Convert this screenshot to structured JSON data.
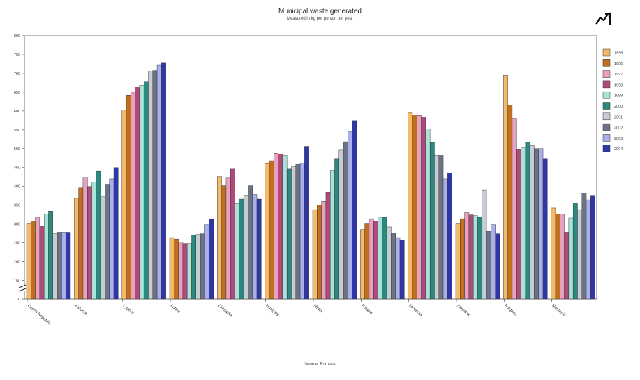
{
  "chart_data": {
    "type": "bar",
    "title": "Municipal waste generated",
    "subtitle": "Measured in kg per person per year",
    "source": "Source: Eurostat",
    "xlabel": "",
    "ylabel": "",
    "ylim": [
      0,
      800
    ],
    "axis_break": true,
    "yticks": [
      0,
      150,
      200,
      250,
      300,
      350,
      400,
      450,
      500,
      550,
      600,
      650,
      700,
      750,
      800
    ],
    "legend_position": "right",
    "categories": [
      "Czech Republic",
      "Estonia",
      "Cyprus",
      "Latvia",
      "Lithuania",
      "Hungary",
      "Malta",
      "Poland",
      "Slovenia",
      "Slovakia",
      "Bulgaria",
      "Romania"
    ],
    "series": [
      {
        "name": "1995",
        "color": "#f5b96b",
        "values": [
          302,
          368,
          602,
          264,
          426,
          460,
          338,
          285,
          596,
          302,
          694,
          342
        ]
      },
      {
        "name": "1996",
        "color": "#c0701c",
        "values": [
          308,
          396,
          642,
          260,
          402,
          468,
          350,
          302,
          590,
          314,
          616,
          326
        ]
      },
      {
        "name": "1997",
        "color": "#e8a1c0",
        "values": [
          318,
          424,
          650,
          252,
          422,
          488,
          360,
          314,
          588,
          330,
          580,
          326
        ]
      },
      {
        "name": "1998",
        "color": "#b04a78",
        "values": [
          294,
          400,
          664,
          248,
          446,
          486,
          384,
          308,
          584,
          324,
          498,
          278
        ]
      },
      {
        "name": "1999",
        "color": "#a8e2d8",
        "values": [
          326,
          412,
          668,
          248,
          354,
          482,
          442,
          318,
          552,
          322,
          502,
          316
        ]
      },
      {
        "name": "2000",
        "color": "#2a8a7e",
        "values": [
          334,
          440,
          678,
          270,
          366,
          446,
          474,
          318,
          516,
          318,
          516,
          356
        ]
      },
      {
        "name": "2001",
        "color": "#c8ccd6",
        "values": [
          274,
          372,
          706,
          272,
          376,
          452,
          496,
          292,
          482,
          390,
          508,
          338
        ]
      },
      {
        "name": "2002",
        "color": "#6c7484",
        "values": [
          278,
          404,
          708,
          274,
          402,
          458,
          518,
          276,
          482,
          280,
          500,
          382
        ]
      },
      {
        "name": "2003",
        "color": "#aab0ec",
        "values": [
          278,
          420,
          722,
          298,
          378,
          462,
          546,
          264,
          420,
          298,
          500,
          364
        ]
      },
      {
        "name": "2004",
        "color": "#2e36a8",
        "values": [
          278,
          450,
          728,
          312,
          366,
          506,
          574,
          258,
          436,
          274,
          474,
          376
        ]
      }
    ]
  }
}
